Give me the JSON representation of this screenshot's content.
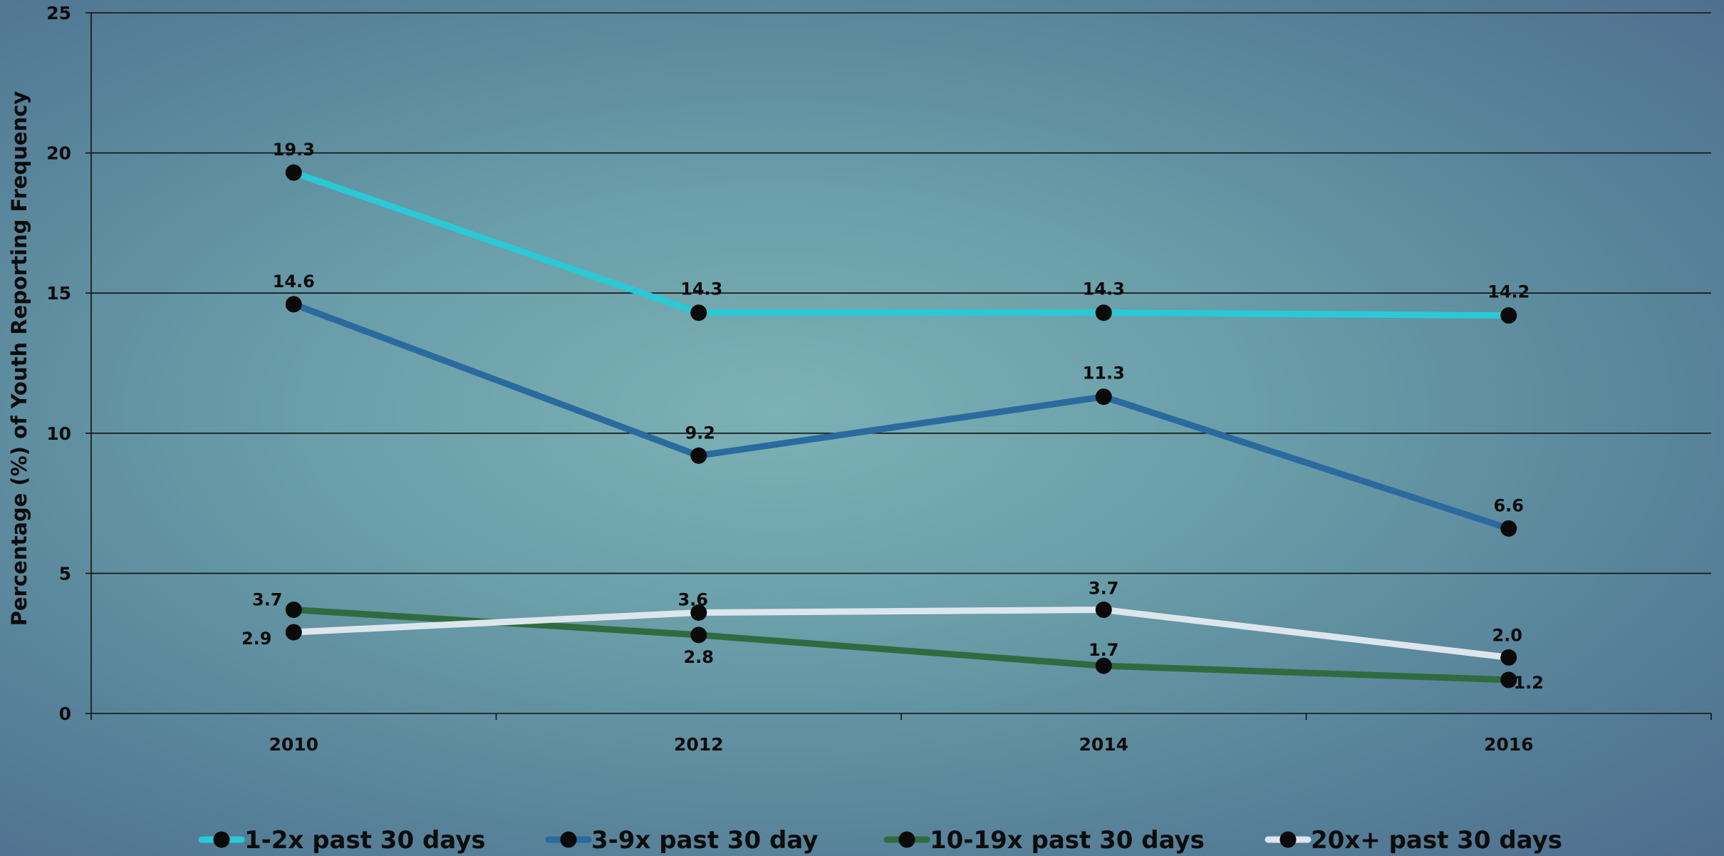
{
  "chart_data": {
    "type": "line",
    "title": "",
    "xlabel": "",
    "ylabel": "Percentage (%) of Youth Reporting Frequency",
    "x": [
      "2010",
      "2012",
      "2014",
      "2016"
    ],
    "ylim": [
      0,
      25
    ],
    "yticks": [
      "0",
      "5",
      "10",
      "15",
      "20",
      "25"
    ],
    "grid": true,
    "legend_position": "bottom",
    "series": [
      {
        "name": "1-2x past 30 days",
        "color": "#29c9d6",
        "values": [
          19.3,
          14.3,
          14.3,
          14.2
        ],
        "labels": [
          "19.3",
          "14.3",
          "14.3",
          "14.2"
        ]
      },
      {
        "name": "3-9x past 30 day",
        "color": "#2a6a9e",
        "values": [
          14.6,
          9.2,
          11.3,
          6.6
        ],
        "labels": [
          "14.6",
          "9.2",
          "11.3",
          "6.6"
        ]
      },
      {
        "name": "10-19x past 30 days",
        "color": "#2f6b3e",
        "values": [
          3.7,
          2.8,
          1.7,
          1.2
        ],
        "labels": [
          "3.7",
          "2.8",
          "1.7",
          "1.2"
        ]
      },
      {
        "name": "20x+ past 30 days",
        "color": "#dde6ec",
        "values": [
          2.9,
          3.6,
          3.7,
          2.0
        ],
        "labels": [
          "2.9",
          "3.6",
          "3.7",
          "2.0"
        ]
      }
    ]
  }
}
